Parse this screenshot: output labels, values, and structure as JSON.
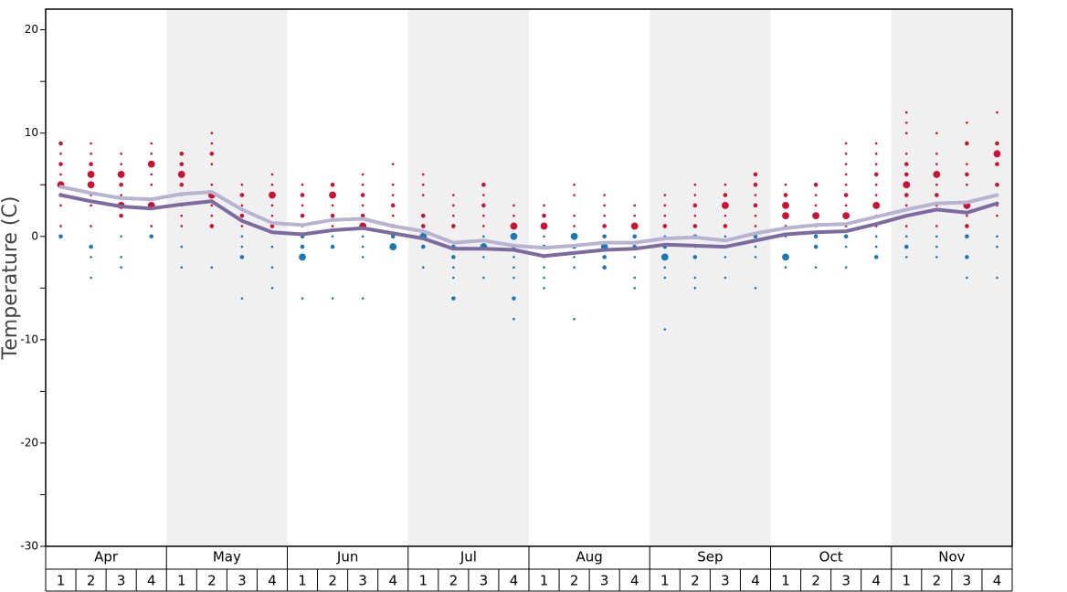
{
  "chart_data": {
    "type": "line",
    "y_label": "Temperature (C)",
    "months": [
      "Apr",
      "May",
      "Jun",
      "Jul",
      "Aug",
      "Sep",
      "Oct",
      "Nov"
    ],
    "weeks": [
      "1",
      "2",
      "3",
      "4"
    ],
    "ylim": [
      -30,
      22
    ],
    "yticks": [
      -30,
      -20,
      -10,
      0,
      10,
      20
    ],
    "yminor_ticks": [
      -25,
      -15,
      -5,
      5,
      15
    ],
    "band_color": "#f0f0f0",
    "dot_colors": {
      "above": "#cc1133",
      "below": "#1a78b4"
    },
    "series": [
      {
        "color": "#b9b3d3",
        "values": [
          4.8,
          4.2,
          3.7,
          3.6,
          4.1,
          4.3,
          2.6,
          1.3,
          1.1,
          1.6,
          1.7,
          1.0,
          0.5,
          -0.6,
          -0.4,
          -0.9,
          -1.1,
          -0.9,
          -0.6,
          -0.6,
          -0.2,
          -0.1,
          -0.4,
          0.3,
          0.8,
          1.1,
          1.2,
          1.9,
          2.6,
          3.2,
          3.3,
          4.0
        ]
      },
      {
        "color": "#7c6aa0",
        "values": [
          4.0,
          3.4,
          2.9,
          2.7,
          3.1,
          3.4,
          1.5,
          0.4,
          0.2,
          0.6,
          0.8,
          0.3,
          -0.2,
          -1.2,
          -1.2,
          -1.3,
          -1.9,
          -1.6,
          -1.3,
          -1.2,
          -0.8,
          -0.9,
          -1.0,
          -0.4,
          0.2,
          0.4,
          0.5,
          1.2,
          2.0,
          2.6,
          2.3,
          3.2
        ]
      }
    ],
    "dots": [
      [
        [
          9,
          2
        ],
        [
          8,
          1
        ],
        [
          7,
          2
        ],
        [
          6,
          1
        ],
        [
          5,
          3
        ],
        [
          4,
          2
        ],
        [
          3,
          1
        ],
        [
          1,
          1
        ],
        [
          0,
          2
        ]
      ],
      [
        [
          9,
          1
        ],
        [
          8,
          1
        ],
        [
          7,
          2
        ],
        [
          6,
          3
        ],
        [
          5,
          3
        ],
        [
          4,
          1
        ],
        [
          3,
          1
        ],
        [
          1,
          1
        ],
        [
          -1,
          2
        ],
        [
          -2,
          1
        ],
        [
          -4,
          1
        ]
      ],
      [
        [
          8,
          1
        ],
        [
          7,
          1
        ],
        [
          6,
          3
        ],
        [
          5,
          2
        ],
        [
          4,
          1
        ],
        [
          3,
          3
        ],
        [
          2,
          2
        ],
        [
          0,
          1
        ],
        [
          -2,
          1
        ],
        [
          -3,
          1
        ]
      ],
      [
        [
          9,
          1
        ],
        [
          8,
          1
        ],
        [
          7,
          3
        ],
        [
          6,
          1
        ],
        [
          5,
          1
        ],
        [
          3,
          3
        ],
        [
          1,
          1
        ],
        [
          0,
          2
        ]
      ],
      [
        [
          8,
          2
        ],
        [
          7,
          2
        ],
        [
          6,
          3
        ],
        [
          5,
          2
        ],
        [
          4,
          1
        ],
        [
          3,
          1
        ],
        [
          2,
          1
        ],
        [
          1,
          1
        ],
        [
          -1,
          1
        ],
        [
          -3,
          1
        ]
      ],
      [
        [
          10,
          1
        ],
        [
          9,
          1
        ],
        [
          8,
          2
        ],
        [
          7,
          1
        ],
        [
          5,
          1
        ],
        [
          4,
          3
        ],
        [
          3,
          1
        ],
        [
          2,
          1
        ],
        [
          1,
          2
        ],
        [
          -3,
          1
        ]
      ],
      [
        [
          5,
          1
        ],
        [
          4,
          2
        ],
        [
          3,
          1
        ],
        [
          2,
          2
        ],
        [
          1,
          1
        ],
        [
          0,
          1
        ],
        [
          -1,
          1
        ],
        [
          -2,
          2
        ],
        [
          -6,
          1
        ]
      ],
      [
        [
          6,
          1
        ],
        [
          5,
          1
        ],
        [
          4,
          3
        ],
        [
          3,
          1
        ],
        [
          2,
          1
        ],
        [
          1,
          2
        ],
        [
          -1,
          1
        ],
        [
          -3,
          1
        ],
        [
          -5,
          1
        ]
      ],
      [
        [
          5,
          1
        ],
        [
          4,
          2
        ],
        [
          3,
          1
        ],
        [
          2,
          2
        ],
        [
          1,
          1
        ],
        [
          0,
          2
        ],
        [
          -1,
          2
        ],
        [
          -2,
          3
        ],
        [
          -6,
          1
        ]
      ],
      [
        [
          5,
          2
        ],
        [
          4,
          3
        ],
        [
          3,
          1
        ],
        [
          2,
          2
        ],
        [
          1,
          1
        ],
        [
          0,
          1
        ],
        [
          -1,
          2
        ],
        [
          -6,
          1
        ]
      ],
      [
        [
          6,
          1
        ],
        [
          5,
          1
        ],
        [
          4,
          2
        ],
        [
          3,
          1
        ],
        [
          2,
          2
        ],
        [
          1,
          3
        ],
        [
          0,
          1
        ],
        [
          -1,
          1
        ],
        [
          -2,
          1
        ],
        [
          -6,
          1
        ]
      ],
      [
        [
          7,
          1
        ],
        [
          5,
          1
        ],
        [
          4,
          1
        ],
        [
          3,
          2
        ],
        [
          2,
          1
        ],
        [
          1,
          2
        ],
        [
          0,
          2
        ],
        [
          -1,
          3
        ]
      ],
      [
        [
          6,
          1
        ],
        [
          5,
          1
        ],
        [
          4,
          1
        ],
        [
          2,
          2
        ],
        [
          1,
          2
        ],
        [
          0,
          3
        ],
        [
          -1,
          2
        ],
        [
          -3,
          1
        ]
      ],
      [
        [
          4,
          1
        ],
        [
          3,
          1
        ],
        [
          2,
          1
        ],
        [
          1,
          2
        ],
        [
          -1,
          2
        ],
        [
          -2,
          2
        ],
        [
          -3,
          1
        ],
        [
          -4,
          1
        ],
        [
          -6,
          2
        ]
      ],
      [
        [
          5,
          2
        ],
        [
          4,
          1
        ],
        [
          3,
          2
        ],
        [
          2,
          1
        ],
        [
          1,
          1
        ],
        [
          0,
          1
        ],
        [
          -1,
          3
        ],
        [
          -2,
          1
        ],
        [
          -4,
          1
        ]
      ],
      [
        [
          3,
          1
        ],
        [
          2,
          1
        ],
        [
          1,
          3
        ],
        [
          0,
          3
        ],
        [
          -1,
          2
        ],
        [
          -2,
          1
        ],
        [
          -3,
          1
        ],
        [
          -4,
          1
        ],
        [
          -6,
          2
        ],
        [
          -8,
          1
        ]
      ],
      [
        [
          3,
          1
        ],
        [
          2,
          2
        ],
        [
          1,
          3
        ],
        [
          0,
          1
        ],
        [
          -1,
          2
        ],
        [
          -2,
          1
        ],
        [
          -3,
          1
        ],
        [
          -4,
          1
        ],
        [
          -5,
          1
        ]
      ],
      [
        [
          5,
          1
        ],
        [
          4,
          1
        ],
        [
          2,
          1
        ],
        [
          1,
          1
        ],
        [
          0,
          3
        ],
        [
          -1,
          2
        ],
        [
          -2,
          1
        ],
        [
          -3,
          1
        ],
        [
          -8,
          1
        ]
      ],
      [
        [
          4,
          1
        ],
        [
          3,
          1
        ],
        [
          2,
          1
        ],
        [
          1,
          2
        ],
        [
          0,
          2
        ],
        [
          -1,
          3
        ],
        [
          -2,
          2
        ],
        [
          -3,
          2
        ]
      ],
      [
        [
          3,
          1
        ],
        [
          2,
          1
        ],
        [
          1,
          3
        ],
        [
          0,
          2
        ],
        [
          -1,
          2
        ],
        [
          -2,
          1
        ],
        [
          -4,
          1
        ],
        [
          -5,
          1
        ]
      ],
      [
        [
          4,
          1
        ],
        [
          3,
          1
        ],
        [
          2,
          1
        ],
        [
          1,
          2
        ],
        [
          0,
          1
        ],
        [
          -1,
          2
        ],
        [
          -2,
          3
        ],
        [
          -3,
          1
        ],
        [
          -4,
          1
        ],
        [
          -9,
          1
        ]
      ],
      [
        [
          5,
          1
        ],
        [
          4,
          1
        ],
        [
          3,
          2
        ],
        [
          2,
          1
        ],
        [
          1,
          2
        ],
        [
          0,
          2
        ],
        [
          -1,
          1
        ],
        [
          -2,
          2
        ],
        [
          -4,
          1
        ],
        [
          -5,
          1
        ]
      ],
      [
        [
          5,
          1
        ],
        [
          4,
          2
        ],
        [
          3,
          3
        ],
        [
          2,
          1
        ],
        [
          1,
          2
        ],
        [
          0,
          1
        ],
        [
          -1,
          1
        ],
        [
          -2,
          1
        ],
        [
          -4,
          1
        ]
      ],
      [
        [
          6,
          2
        ],
        [
          5,
          2
        ],
        [
          4,
          1
        ],
        [
          3,
          2
        ],
        [
          2,
          1
        ],
        [
          1,
          1
        ],
        [
          0,
          2
        ],
        [
          -1,
          1
        ],
        [
          -2,
          1
        ],
        [
          -5,
          1
        ]
      ],
      [
        [
          5,
          1
        ],
        [
          4,
          2
        ],
        [
          3,
          3
        ],
        [
          2,
          3
        ],
        [
          1,
          1
        ],
        [
          0,
          1
        ],
        [
          -2,
          3
        ],
        [
          -3,
          1
        ]
      ],
      [
        [
          5,
          2
        ],
        [
          4,
          1
        ],
        [
          3,
          1
        ],
        [
          2,
          3
        ],
        [
          1,
          1
        ],
        [
          0,
          2
        ],
        [
          -1,
          2
        ],
        [
          -3,
          1
        ]
      ],
      [
        [
          9,
          1
        ],
        [
          8,
          1
        ],
        [
          7,
          1
        ],
        [
          6,
          1
        ],
        [
          5,
          1
        ],
        [
          4,
          2
        ],
        [
          3,
          1
        ],
        [
          2,
          3
        ],
        [
          1,
          1
        ],
        [
          0,
          2
        ],
        [
          -1,
          1
        ],
        [
          -3,
          1
        ]
      ],
      [
        [
          9,
          1
        ],
        [
          8,
          1
        ],
        [
          7,
          1
        ],
        [
          6,
          2
        ],
        [
          5,
          1
        ],
        [
          4,
          1
        ],
        [
          3,
          3
        ],
        [
          2,
          1
        ],
        [
          1,
          1
        ],
        [
          0,
          1
        ],
        [
          -1,
          1
        ],
        [
          -2,
          2
        ]
      ],
      [
        [
          12,
          1
        ],
        [
          11,
          1
        ],
        [
          10,
          1
        ],
        [
          8,
          1
        ],
        [
          7,
          2
        ],
        [
          6,
          2
        ],
        [
          5,
          3
        ],
        [
          4,
          2
        ],
        [
          3,
          1
        ],
        [
          1,
          1
        ],
        [
          0,
          1
        ],
        [
          -1,
          2
        ],
        [
          -2,
          1
        ]
      ],
      [
        [
          10,
          1
        ],
        [
          8,
          1
        ],
        [
          7,
          1
        ],
        [
          6,
          3
        ],
        [
          5,
          1
        ],
        [
          4,
          2
        ],
        [
          3,
          1
        ],
        [
          1,
          1
        ],
        [
          0,
          1
        ],
        [
          -1,
          1
        ],
        [
          -2,
          1
        ]
      ],
      [
        [
          11,
          1
        ],
        [
          9,
          2
        ],
        [
          7,
          1
        ],
        [
          6,
          2
        ],
        [
          5,
          1
        ],
        [
          3,
          3
        ],
        [
          2,
          1
        ],
        [
          1,
          2
        ],
        [
          0,
          2
        ],
        [
          -2,
          2
        ],
        [
          -4,
          1
        ]
      ],
      [
        [
          12,
          1
        ],
        [
          9,
          2
        ],
        [
          8,
          3
        ],
        [
          7,
          2
        ],
        [
          5,
          2
        ],
        [
          4,
          1
        ],
        [
          3,
          1
        ],
        [
          2,
          1
        ],
        [
          0,
          1
        ],
        [
          -1,
          1
        ],
        [
          -4,
          1
        ]
      ]
    ]
  }
}
